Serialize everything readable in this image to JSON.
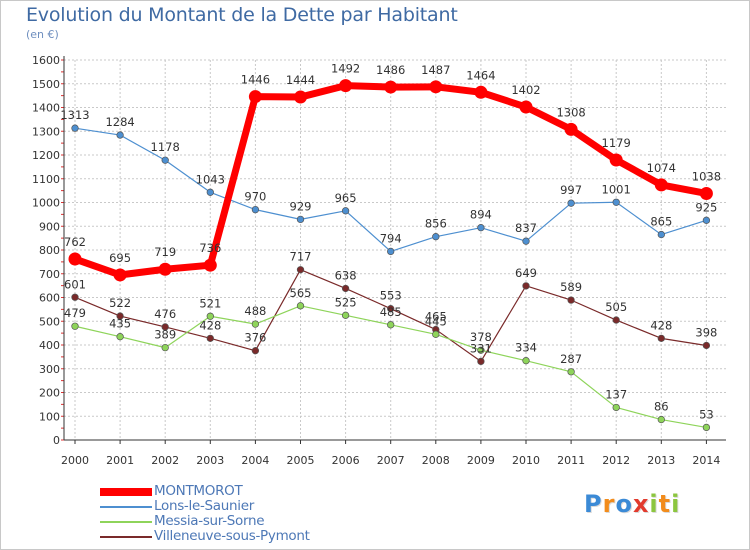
{
  "title": "Evolution du Montant de la Dette par Habitant",
  "subtitle": "(en €)",
  "chart_data": {
    "type": "line",
    "title": "Evolution du Montant de la Dette par Habitant",
    "ylabel": "(en €)",
    "ylim": [
      0,
      1600
    ],
    "yticks": [
      0,
      100,
      200,
      300,
      400,
      500,
      600,
      700,
      800,
      900,
      1000,
      1100,
      1200,
      1300,
      1400,
      1500,
      1600
    ],
    "x": [
      "2000",
      "2001",
      "2002",
      "2003",
      "2004",
      "2005",
      "2006",
      "2007",
      "2008",
      "2009",
      "2010",
      "2011",
      "2012",
      "2013",
      "2014"
    ],
    "grid": true,
    "legend_position": "bottom-left",
    "series": [
      {
        "name": "MONTMOROT",
        "color": "#ff0000",
        "values": [
          762,
          695,
          719,
          736,
          1446,
          1444,
          1492,
          1486,
          1487,
          1464,
          1402,
          1308,
          1179,
          1074,
          1038
        ]
      },
      {
        "name": "Lons-le-Saunier",
        "color": "#4d8fd0",
        "values": [
          1313,
          1284,
          1178,
          1043,
          970,
          929,
          965,
          794,
          856,
          894,
          837,
          997,
          1001,
          865,
          925
        ]
      },
      {
        "name": "Messia-sur-Sorne",
        "color": "#8ed45a",
        "values": [
          479,
          435,
          389,
          521,
          488,
          565,
          525,
          485,
          445,
          378,
          334,
          287,
          137,
          86,
          53
        ]
      },
      {
        "name": "Villeneuve-sous-Pymont",
        "color": "#7a2a2a",
        "values": [
          601,
          522,
          476,
          428,
          376,
          717,
          638,
          553,
          465,
          331,
          649,
          589,
          505,
          428,
          398
        ]
      }
    ]
  },
  "logo": {
    "letters": [
      "P",
      "r",
      "o",
      "x",
      "i",
      "t",
      "i"
    ],
    "colors": [
      "#3b8ad6",
      "#f28c1c",
      "#3b8ad6",
      "#e23b2e",
      "#8cc63f",
      "#f28c1c",
      "#8cc63f"
    ]
  }
}
